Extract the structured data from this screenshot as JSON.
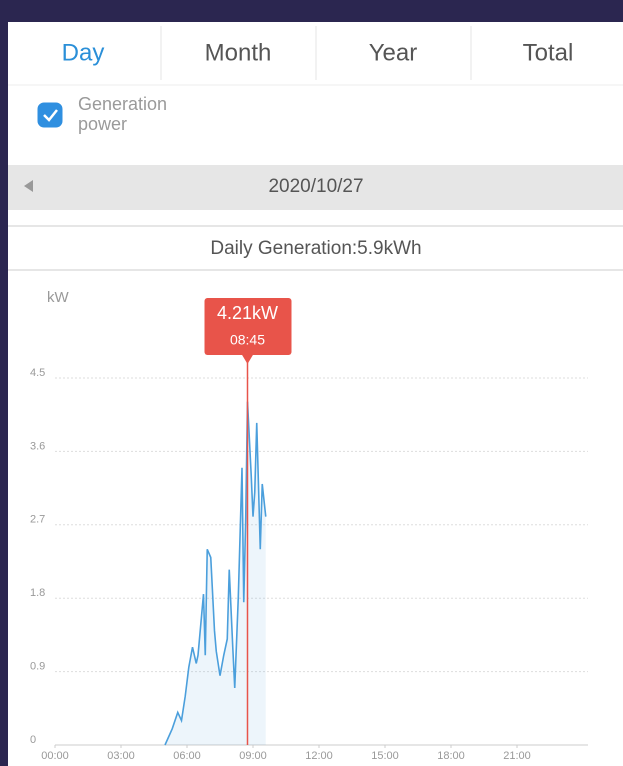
{
  "tabs": [
    "Day",
    "Month",
    "Year",
    "Total"
  ],
  "selected_tab": 0,
  "date": "2020/10/27",
  "summary": "Daily Generation:5.9kWh",
  "chart_data": {
    "type": "line",
    "ylabel": "kW",
    "checked": true,
    "grid": true,
    "x": [
      5.0,
      5.33,
      5.58,
      5.75,
      5.92,
      6.08,
      6.25,
      6.42,
      6.5,
      6.75,
      6.83,
      6.92,
      7.08,
      7.25,
      7.33,
      7.5,
      7.67,
      7.83,
      7.92,
      8.08,
      8.17,
      8.33,
      8.5,
      8.58,
      8.67,
      8.75,
      8.92,
      9.0,
      9.08,
      9.17,
      9.33,
      9.42,
      9.58
    ],
    "series": [
      {
        "name": "Generation power",
        "color": "#4b9fdc",
        "values": [
          0,
          0.2,
          0.4,
          0.3,
          0.6,
          0.95,
          1.2,
          1.0,
          1.1,
          1.85,
          1.1,
          2.4,
          2.3,
          1.4,
          1.15,
          0.85,
          1.1,
          1.3,
          2.15,
          1.2,
          0.7,
          1.8,
          3.4,
          1.75,
          2.8,
          4.21,
          3.3,
          2.8,
          3.1,
          3.95,
          2.4,
          3.2,
          2.8
        ]
      }
    ],
    "xlim": [
      0,
      24
    ],
    "xticks": [
      {
        "value": 0,
        "label": "00:00"
      },
      {
        "value": 3,
        "label": "03:00"
      },
      {
        "value": 6,
        "label": "06:00"
      },
      {
        "value": 9,
        "label": "09:00"
      },
      {
        "value": 12,
        "label": "12:00"
      },
      {
        "value": 15,
        "label": "15:00"
      },
      {
        "value": 18,
        "label": "18:00"
      },
      {
        "value": 21,
        "label": "21:00"
      }
    ],
    "ylim": [
      0,
      4.5
    ],
    "yticks": [
      0,
      0.9,
      1.8,
      2.7,
      3.6,
      4.5
    ],
    "tooltip": {
      "x": 8.75,
      "value": 4.21,
      "label": "4.21kW",
      "time": "08:45",
      "color": "#e8544a"
    }
  }
}
